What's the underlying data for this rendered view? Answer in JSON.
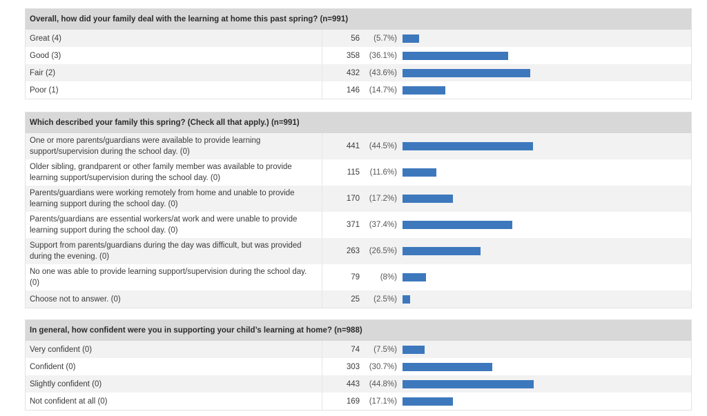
{
  "colors": {
    "bar": "#3d78bd",
    "header_bg": "#d8d8d8",
    "row_alt": "#f2f2f2"
  },
  "chart_data": [
    {
      "type": "bar",
      "title": "Overall, how did your family deal with the learning at home this past spring? (n=991)",
      "categories": [
        "Great (4)",
        "Good (3)",
        "Fair (2)",
        "Poor (1)"
      ],
      "counts": [
        "56",
        "358",
        "432",
        "146"
      ],
      "percent_labels": [
        "(5.7%)",
        "(36.1%)",
        "(43.6%)",
        "(14.7%)"
      ],
      "values": [
        5.7,
        36.1,
        43.6,
        14.7
      ]
    },
    {
      "type": "bar",
      "title": "Which described your family this spring? (Check all that apply.) (n=991)",
      "categories": [
        "One or more parents/guardians were available to provide learning support/supervision during the school day. (0)",
        "Older sibling, grandparent or other family member was available to provide learning support/supervision during the school day. (0)",
        "Parents/guardians were working remotely from home and unable to provide learning support during the school day. (0)",
        "Parents/guardians are essential workers/at work and were unable to provide learning support during the school day. (0)",
        "Support from parents/guardians during the day was difficult, but was provided during the evening. (0)",
        "No one was able to provide learning support/supervision during the school day. (0)",
        "Choose not to answer. (0)"
      ],
      "counts": [
        "441",
        "115",
        "170",
        "371",
        "263",
        "79",
        "25"
      ],
      "percent_labels": [
        "(44.5%)",
        "(11.6%)",
        "(17.2%)",
        "(37.4%)",
        "(26.5%)",
        "(8%)",
        "(2.5%)"
      ],
      "values": [
        44.5,
        11.6,
        17.2,
        37.4,
        26.5,
        8,
        2.5
      ]
    },
    {
      "type": "bar",
      "title": "In general, how confident were you in supporting your child’s learning at home? (n=988)",
      "categories": [
        "Very confident (0)",
        "Confident (0)",
        "Slightly confident (0)",
        "Not confident at all (0)"
      ],
      "counts": [
        "74",
        "303",
        "443",
        "169"
      ],
      "percent_labels": [
        "(7.5%)",
        "(30.7%)",
        "(44.8%)",
        "(17.1%)"
      ],
      "values": [
        7.5,
        30.7,
        44.8,
        17.1
      ]
    }
  ]
}
